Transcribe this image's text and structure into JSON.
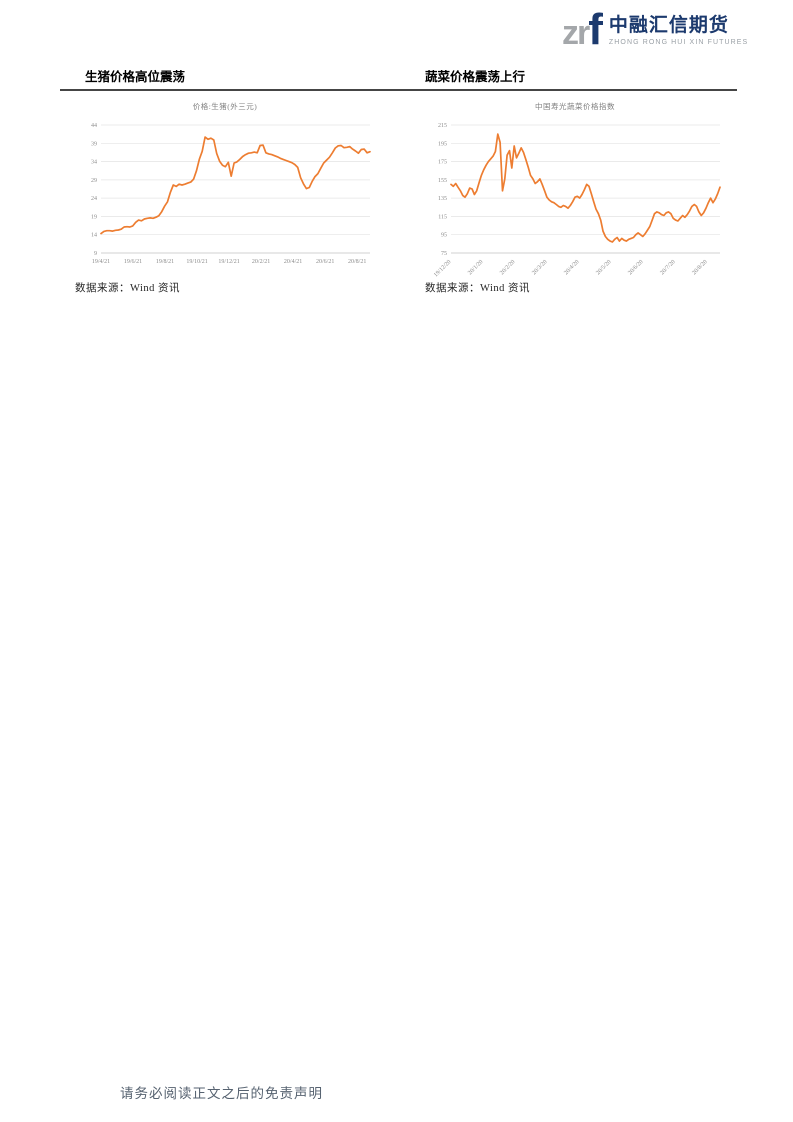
{
  "logo": {
    "abbr_gray": "zr",
    "abbr_blue": "f",
    "company_cn": "中融汇信期货",
    "company_en": "ZHONG RONG HUI XIN FUTURES",
    "color_navy": "#1c3a6e",
    "color_gray": "#a4a7aa"
  },
  "sections": {
    "left": {
      "heading": "生猪价格高位震荡",
      "source": "数据来源：Wind 资讯"
    },
    "right": {
      "heading": "蔬菜价格震荡上行",
      "source": "数据来源：Wind 资讯"
    }
  },
  "footer": {
    "disclaimer": "请务必阅读正文之后的免责声明"
  },
  "chart_data": [
    {
      "type": "line",
      "title": "价格:生猪(外三元)",
      "x_ticks": [
        "19/4/21",
        "19/6/21",
        "19/8/21",
        "19/10/21",
        "19/12/21",
        "20/2/21",
        "20/4/21",
        "20/6/21",
        "20/8/21"
      ],
      "y_ticks": [
        44,
        39,
        34,
        29,
        24,
        19,
        14,
        9
      ],
      "ylim": [
        9,
        44
      ],
      "grid": true,
      "legend_position": "none",
      "x_tick_rotation": 0,
      "line_color": "#ed7d31",
      "series": [
        {
          "name": "价格:生猪(外三元)",
          "values": [
            14.3,
            14.9,
            15.1,
            15.1,
            15.0,
            15.2,
            15.3,
            15.5,
            16.1,
            16.2,
            16.1,
            16.4,
            17.4,
            18.0,
            17.8,
            18.3,
            18.5,
            18.6,
            18.5,
            18.8,
            19.2,
            20.3,
            21.8,
            23.0,
            25.6,
            27.6,
            27.2,
            27.8,
            27.6,
            27.8,
            28.1,
            28.4,
            29.2,
            31.5,
            34.6,
            36.8,
            40.7,
            40.1,
            40.4,
            39.9,
            36.2,
            34.1,
            33.0,
            32.6,
            33.8,
            30.0,
            33.6,
            33.9,
            34.6,
            35.4,
            35.9,
            36.3,
            36.4,
            36.6,
            36.4,
            38.4,
            38.5,
            36.4,
            36.1,
            35.9,
            35.6,
            35.3,
            34.9,
            34.6,
            34.3,
            34.0,
            33.7,
            33.2,
            32.4,
            29.6,
            27.9,
            26.6,
            26.9,
            28.6,
            29.9,
            30.7,
            32.2,
            33.6,
            34.4,
            35.2,
            36.4,
            37.7,
            38.3,
            38.4,
            37.8,
            37.9,
            38.1,
            37.4,
            36.9,
            36.3,
            37.3,
            37.4,
            36.4,
            36.7
          ]
        }
      ]
    },
    {
      "type": "line",
      "title": "中国寿光蔬菜价格指数",
      "x_ticks": [
        "19/12/20",
        "20/1/20",
        "20/2/20",
        "20/3/20",
        "20/4/20",
        "20/5/20",
        "20/6/20",
        "20/7/20",
        "20/8/20"
      ],
      "y_ticks": [
        215,
        195,
        175,
        155,
        135,
        115,
        95,
        75
      ],
      "ylim": [
        75,
        215
      ],
      "grid": true,
      "legend_position": "none",
      "x_tick_rotation": 45,
      "line_color": "#ed7d31",
      "series": [
        {
          "name": "中国寿光蔬菜价格指数",
          "values": [
            150,
            148,
            151,
            147,
            143,
            138,
            136,
            140,
            146,
            145,
            139,
            143,
            152,
            160,
            166,
            171,
            175,
            178,
            181,
            186,
            205,
            196,
            143,
            156,
            182,
            187,
            168,
            192,
            179,
            184,
            190,
            185,
            177,
            169,
            160,
            156,
            151,
            153,
            156,
            150,
            143,
            136,
            133,
            131,
            130,
            128,
            126,
            125,
            127,
            126,
            124,
            127,
            131,
            136,
            137,
            135,
            139,
            144,
            150,
            148,
            140,
            131,
            123,
            118,
            111,
            99,
            93,
            90,
            88,
            87,
            90,
            92,
            88,
            91,
            89,
            88,
            90,
            91,
            92,
            95,
            97,
            95,
            93,
            96,
            100,
            104,
            111,
            118,
            120,
            119,
            117,
            116,
            119,
            120,
            118,
            113,
            111,
            110,
            113,
            116,
            114,
            117,
            121,
            126,
            128,
            126,
            120,
            116,
            119,
            124,
            130,
            135,
            130,
            134,
            140,
            147
          ]
        }
      ]
    }
  ]
}
